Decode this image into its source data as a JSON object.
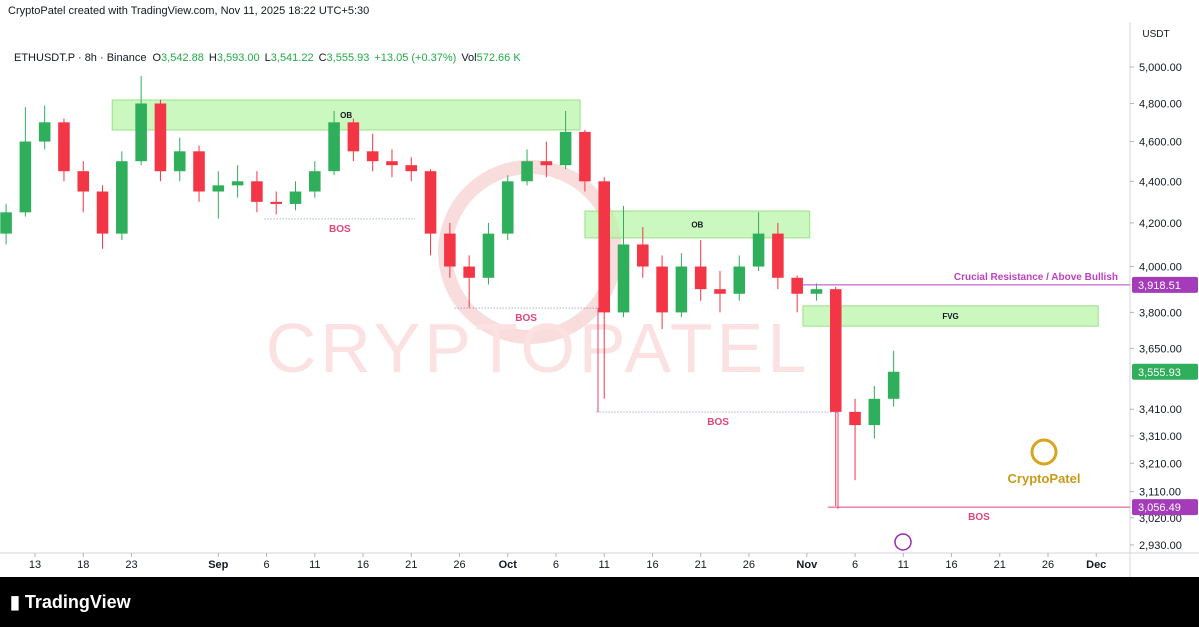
{
  "top_note": "CryptoPatel created with TradingView.com, Nov 11, 2025 18:22 UTC+5:30",
  "footer": "TradingView",
  "header": {
    "symbol": "ETHUSDT.P · 8h · Binance",
    "fields": [
      {
        "key": "O",
        "value": "3,542.88"
      },
      {
        "key": "H",
        "value": "3,593.00"
      },
      {
        "key": "L",
        "value": "3,541.22"
      },
      {
        "key": "C",
        "value": "3,555.93"
      }
    ],
    "change": "+13.05 (+0.37%)",
    "vol_key": "Vol",
    "vol": "572.66 K"
  },
  "chart_data": {
    "type": "candlestick",
    "y_axis_label": "USDT",
    "log_scale": true,
    "watermark": "CRYPTOPATEL",
    "logo_text": "CryptoPatel",
    "up_color": "#2fae5b",
    "down_color": "#f23645",
    "xlim": [
      221.37,
      338.5
    ],
    "ylim": [
      2833,
      5258
    ],
    "xticks": [
      {
        "value": 225,
        "label": "13"
      },
      {
        "value": 230,
        "label": "18"
      },
      {
        "value": 235,
        "label": "23"
      },
      {
        "value": 244,
        "label": "Sep"
      },
      {
        "value": 249,
        "label": "6"
      },
      {
        "value": 254,
        "label": "11"
      },
      {
        "value": 259,
        "label": "16"
      },
      {
        "value": 264,
        "label": "21"
      },
      {
        "value": 269,
        "label": "26"
      },
      {
        "value": 274,
        "label": "Oct"
      },
      {
        "value": 279,
        "label": "6"
      },
      {
        "value": 284,
        "label": "11"
      },
      {
        "value": 289,
        "label": "16"
      },
      {
        "value": 294,
        "label": "21"
      },
      {
        "value": 299,
        "label": "26"
      },
      {
        "value": 305,
        "label": "Nov"
      },
      {
        "value": 310,
        "label": "6"
      },
      {
        "value": 315,
        "label": "11"
      },
      {
        "value": 320,
        "label": "16"
      },
      {
        "value": 325,
        "label": "21"
      },
      {
        "value": 330,
        "label": "26"
      },
      {
        "value": 335,
        "label": "Dec"
      }
    ],
    "yticks": [
      {
        "value": 5000,
        "label": "5,000.00"
      },
      {
        "value": 4800,
        "label": "4,800.00"
      },
      {
        "value": 4600,
        "label": "4,600.00"
      },
      {
        "value": 4400,
        "label": "4,400.00"
      },
      {
        "value": 4200,
        "label": "4,200.00"
      },
      {
        "value": 4000,
        "label": "4,000.00"
      },
      {
        "value": 3800,
        "label": "3,800.00"
      },
      {
        "value": 3650,
        "label": "3,650.00"
      },
      {
        "value": 3410,
        "label": "3,410.00"
      },
      {
        "value": 3310,
        "label": "3,310.00"
      },
      {
        "value": 3210,
        "label": "3,210.00"
      },
      {
        "value": 3110,
        "label": "3,110.00"
      },
      {
        "value": 3020,
        "label": "3,020.00"
      },
      {
        "value": 2930,
        "label": "2,930.00"
      }
    ],
    "x": [
      222,
      224,
      226,
      228,
      230,
      232,
      234,
      236,
      238,
      240,
      242,
      244,
      246,
      248,
      250,
      252,
      254,
      256,
      258,
      260,
      262,
      264,
      266,
      268,
      270,
      272,
      274,
      276,
      278,
      280,
      282,
      284,
      286,
      288,
      290,
      292,
      294,
      296,
      298,
      300,
      302,
      304,
      306,
      308,
      310,
      312,
      314
    ],
    "open": [
      4150,
      4250,
      4600,
      4700,
      4450,
      4350,
      4150,
      4500,
      4800,
      4450,
      4550,
      4350,
      4380,
      4400,
      4300,
      4290,
      4350,
      4450,
      4700,
      4550,
      4500,
      4480,
      4450,
      4150,
      4000,
      3950,
      4150,
      4400,
      4500,
      4480,
      4650,
      4400,
      3800,
      4100,
      4000,
      3800,
      4000,
      3900,
      3880,
      4000,
      4150,
      3950,
      3880,
      3900,
      3400,
      3350,
      3450
    ],
    "high": [
      4290,
      4780,
      4790,
      4720,
      4500,
      4380,
      4550,
      4950,
      4820,
      4620,
      4580,
      4450,
      4480,
      4450,
      4350,
      4400,
      4500,
      4760,
      4720,
      4640,
      4560,
      4520,
      4460,
      4200,
      4050,
      4200,
      4430,
      4560,
      4600,
      4760,
      4660,
      4420,
      4280,
      4180,
      4050,
      4060,
      4120,
      3980,
      4050,
      4250,
      4200,
      3960,
      3925,
      3910,
      3450,
      3500,
      3640
    ],
    "low": [
      4100,
      4230,
      4560,
      4400,
      4250,
      4080,
      4120,
      4480,
      4400,
      4400,
      4300,
      4220,
      4320,
      4250,
      4240,
      4260,
      4320,
      4430,
      4500,
      4450,
      4420,
      4400,
      4050,
      3950,
      3820,
      3920,
      4120,
      4380,
      4420,
      4460,
      4350,
      3450,
      3780,
      3950,
      3730,
      3780,
      3850,
      3800,
      3850,
      3980,
      3900,
      3800,
      3850,
      3060,
      3150,
      3300,
      3420
    ],
    "close": [
      4250,
      4600,
      4700,
      4450,
      4350,
      4150,
      4500,
      4800,
      4450,
      4550,
      4350,
      4380,
      4400,
      4300,
      4290,
      4350,
      4450,
      4700,
      4550,
      4500,
      4480,
      4450,
      4150,
      4000,
      3950,
      4150,
      4400,
      4500,
      4480,
      4650,
      4400,
      3800,
      4100,
      4000,
      3800,
      4000,
      3900,
      3880,
      4000,
      4150,
      3950,
      3880,
      3900,
      3400,
      3350,
      3450,
      3555.93
    ],
    "zones": [
      {
        "label": "OB",
        "x": [
          233,
          281.5
        ],
        "y": [
          4660,
          4819
        ]
      },
      {
        "label": "OB",
        "x": [
          282,
          305.3
        ],
        "y": [
          4130,
          4256
        ]
      },
      {
        "label": "FVG",
        "x": [
          304.6,
          335.2
        ],
        "y": [
          3742,
          3828
        ]
      }
    ],
    "levels": [
      {
        "label": "BOS",
        "price": 4219,
        "x": [
          248.8,
          264.4
        ],
        "color": "#e0457b"
      },
      {
        "label": "BOS",
        "price": 3818,
        "x": [
          268.5,
          283.3
        ],
        "color": "#e0457b"
      },
      {
        "label": "BOS",
        "price": 3399,
        "x": [
          283.2,
          308.4
        ],
        "color": "#e0457b"
      },
      {
        "label": "BOS",
        "price": 3056.49,
        "x": [
          307.2,
          338.5
        ],
        "color": "#e0457b"
      },
      {
        "label": "Crucial Resistance / Above Bullish",
        "price": 3918.51,
        "x": [
          304.3,
          338.5
        ],
        "color": "#c03fc0"
      }
    ],
    "price_tags": [
      {
        "value": 3918.51,
        "label": "3,918.51",
        "color": "#a43bb8"
      },
      {
        "value": 3555.93,
        "label": "3,555.93",
        "color": "#2fae5b"
      },
      {
        "value": 3056.49,
        "label": "3,056.49",
        "color": "#a43bb8"
      }
    ]
  }
}
